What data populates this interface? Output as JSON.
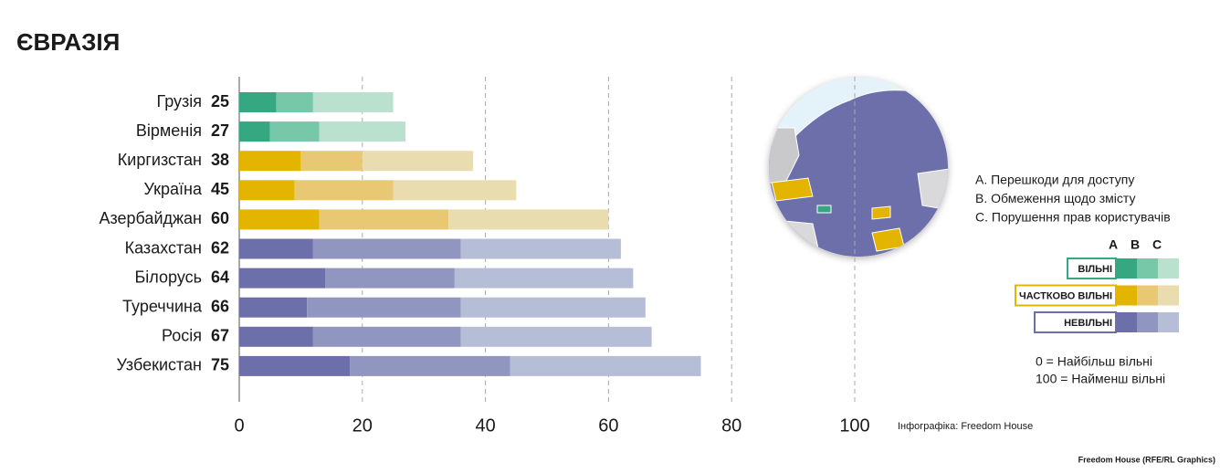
{
  "chart_data": {
    "type": "stacked-bar-horizontal",
    "title": "ЄВРАЗІЯ",
    "categories": [
      "Грузія",
      "Вірменія",
      "Киргизстан",
      "Україна",
      "Азербайджан",
      "Казахстан",
      "Білорусь",
      "Туреччина",
      "Росія",
      "Узбекистан"
    ],
    "totals": [
      25,
      27,
      38,
      45,
      60,
      62,
      64,
      66,
      67,
      75
    ],
    "series": [
      {
        "name": "A. Перешкоди для доступу",
        "values": [
          6,
          5,
          10,
          9,
          13,
          12,
          14,
          11,
          12,
          18
        ],
        "colors": [
          "#35a882",
          "#35a882",
          "#e3b400",
          "#e3b400",
          "#e3b400",
          "#6c6fa9",
          "#6c6fa9",
          "#6c6fa9",
          "#6c6fa9",
          "#6c6fa9"
        ]
      },
      {
        "name": "B. Обмеження щодо змісту",
        "values": [
          6,
          8,
          10,
          16,
          21,
          24,
          21,
          25,
          24,
          26
        ],
        "colors": [
          "#77c8a9",
          "#77c8a9",
          "#e8c873",
          "#e8c873",
          "#e8c873",
          "#9196c1",
          "#9196c1",
          "#9196c1",
          "#9196c1",
          "#9196c1"
        ]
      },
      {
        "name": "C. Порушення прав користувачів",
        "values": [
          13,
          14,
          18,
          20,
          26,
          26,
          29,
          30,
          31,
          31
        ],
        "colors": [
          "#b9e1cd",
          "#b9e1cd",
          "#e9dcae",
          "#e9dcae",
          "#e9dcae",
          "#b6bdd7",
          "#b6bdd7",
          "#b6bdd7",
          "#b6bdd7",
          "#b6bdd7"
        ]
      }
    ],
    "xlim": [
      0,
      100
    ],
    "xticks": [
      0,
      20,
      40,
      60,
      80,
      100
    ],
    "grid": true,
    "legend": {
      "headers": [
        "A",
        "B",
        "C"
      ],
      "rows": [
        {
          "label": "ВІЛЬНІ",
          "border": "#35a882",
          "colors": [
            "#35a882",
            "#77c8a9",
            "#b9e1cd"
          ]
        },
        {
          "label": "ЧАСТКОВО ВІЛЬНІ",
          "border": "#e3b400",
          "colors": [
            "#e3b400",
            "#e8c873",
            "#e9dcae"
          ]
        },
        {
          "label": "НЕВІЛЬНІ",
          "border": "#6c6fa9",
          "colors": [
            "#6c6fa9",
            "#9196c1",
            "#b6bdd7"
          ]
        }
      ]
    },
    "notes": [
      "0 = Найбільш вільні",
      "100 = Найменш вільні"
    ],
    "credit": "Інфографіка: Freedom House",
    "source": "Freedom House (RFE/RL Graphics)"
  }
}
